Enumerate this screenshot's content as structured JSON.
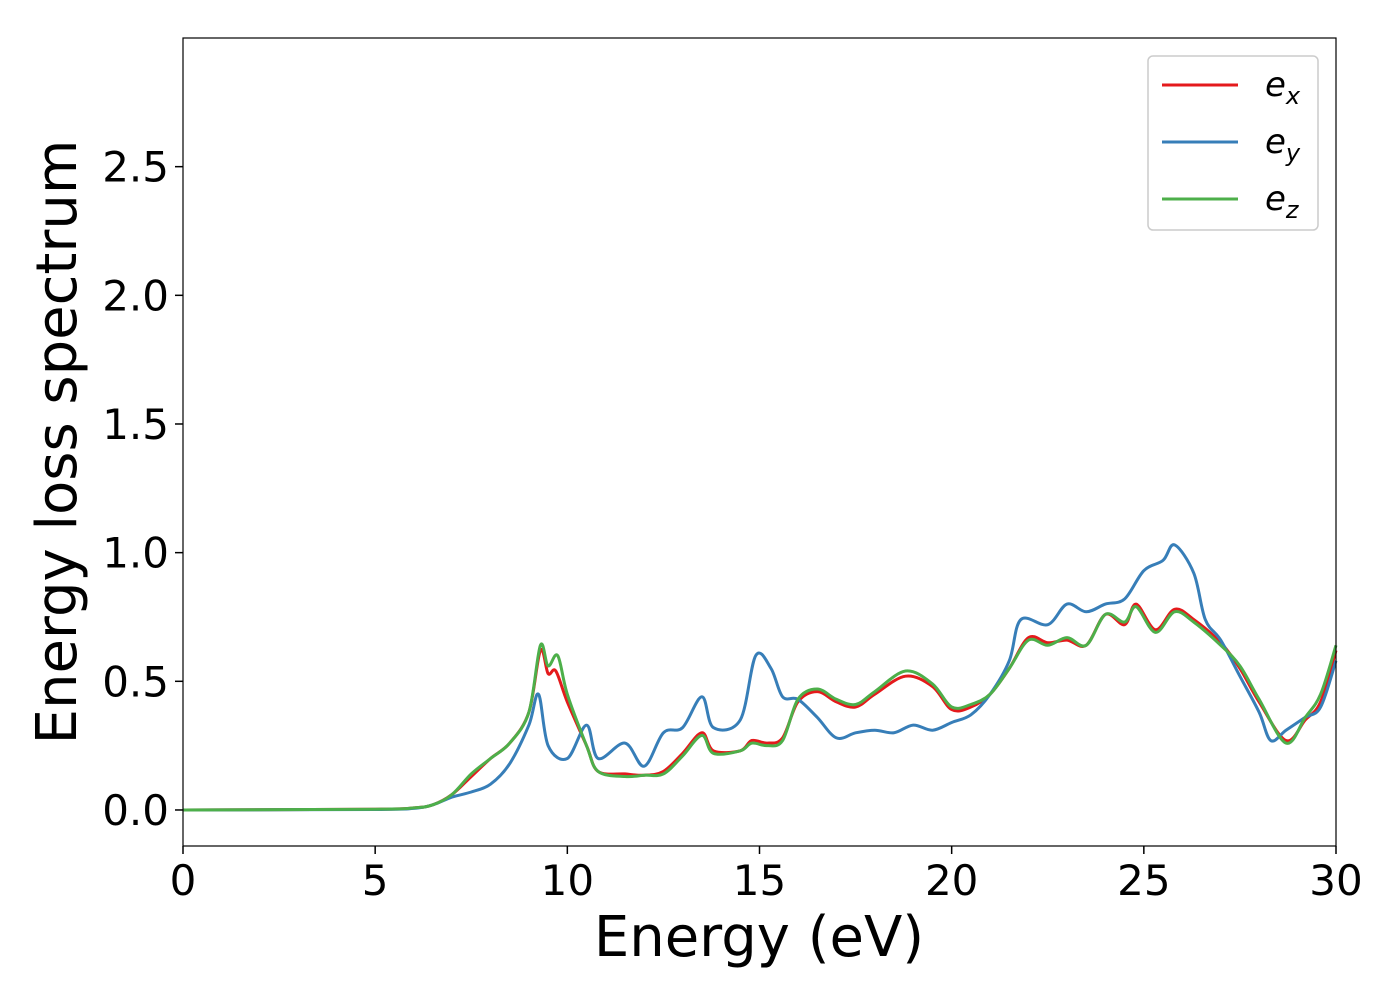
{
  "chart_data": {
    "type": "line",
    "xlabel": "Energy (eV)",
    "ylabel": "Energy loss spectrum",
    "xlim": [
      0,
      30
    ],
    "ylim": [
      -0.14,
      3.0
    ],
    "x_ticks": [
      0,
      5,
      10,
      15,
      20,
      25,
      30
    ],
    "x_tick_labels": [
      "0",
      "5",
      "10",
      "15",
      "20",
      "25",
      "30"
    ],
    "y_ticks": [
      0.0,
      0.5,
      1.0,
      1.5,
      2.0,
      2.5
    ],
    "y_tick_labels": [
      "0.0",
      "0.5",
      "1.0",
      "1.5",
      "2.0",
      "2.5"
    ],
    "grid": false,
    "legend_position": "top-right",
    "series": [
      {
        "name": "e",
        "subscript": "x",
        "color": "#e41a1c",
        "points": [
          [
            0,
            0.0
          ],
          [
            5,
            0.003
          ],
          [
            6,
            0.008
          ],
          [
            6.5,
            0.02
          ],
          [
            7,
            0.06
          ],
          [
            7.5,
            0.13
          ],
          [
            8,
            0.2
          ],
          [
            8.5,
            0.26
          ],
          [
            9,
            0.38
          ],
          [
            9.3,
            0.62
          ],
          [
            9.5,
            0.53
          ],
          [
            9.7,
            0.54
          ],
          [
            10,
            0.42
          ],
          [
            10.5,
            0.25
          ],
          [
            10.8,
            0.15
          ],
          [
            11.5,
            0.14
          ],
          [
            12,
            0.135
          ],
          [
            12.5,
            0.15
          ],
          [
            13,
            0.22
          ],
          [
            13.5,
            0.3
          ],
          [
            13.8,
            0.23
          ],
          [
            14.5,
            0.23
          ],
          [
            14.8,
            0.27
          ],
          [
            15.2,
            0.26
          ],
          [
            15.6,
            0.28
          ],
          [
            16,
            0.42
          ],
          [
            16.5,
            0.46
          ],
          [
            17,
            0.42
          ],
          [
            17.5,
            0.4
          ],
          [
            18,
            0.45
          ],
          [
            18.8,
            0.52
          ],
          [
            19.5,
            0.48
          ],
          [
            20,
            0.39
          ],
          [
            20.5,
            0.4
          ],
          [
            21,
            0.45
          ],
          [
            21.5,
            0.55
          ],
          [
            22,
            0.67
          ],
          [
            22.5,
            0.65
          ],
          [
            23,
            0.66
          ],
          [
            23.5,
            0.64
          ],
          [
            24,
            0.76
          ],
          [
            24.5,
            0.72
          ],
          [
            24.8,
            0.8
          ],
          [
            25.3,
            0.7
          ],
          [
            25.8,
            0.78
          ],
          [
            26.3,
            0.74
          ],
          [
            27,
            0.65
          ],
          [
            27.5,
            0.55
          ],
          [
            28,
            0.42
          ],
          [
            28.7,
            0.27
          ],
          [
            29.2,
            0.35
          ],
          [
            29.6,
            0.42
          ],
          [
            30,
            0.62
          ]
        ]
      },
      {
        "name": "e",
        "subscript": "y",
        "color": "#377eb8",
        "points": [
          [
            0,
            0.0
          ],
          [
            5,
            0.002
          ],
          [
            6,
            0.006
          ],
          [
            6.5,
            0.02
          ],
          [
            7,
            0.05
          ],
          [
            7.5,
            0.07
          ],
          [
            8,
            0.1
          ],
          [
            8.5,
            0.18
          ],
          [
            9,
            0.33
          ],
          [
            9.25,
            0.45
          ],
          [
            9.5,
            0.25
          ],
          [
            10,
            0.2
          ],
          [
            10.5,
            0.33
          ],
          [
            10.8,
            0.2
          ],
          [
            11.5,
            0.26
          ],
          [
            12,
            0.17
          ],
          [
            12.5,
            0.3
          ],
          [
            13,
            0.32
          ],
          [
            13.5,
            0.44
          ],
          [
            13.8,
            0.32
          ],
          [
            14.5,
            0.35
          ],
          [
            14.9,
            0.6
          ],
          [
            15.3,
            0.55
          ],
          [
            15.6,
            0.44
          ],
          [
            16,
            0.43
          ],
          [
            16.5,
            0.36
          ],
          [
            17,
            0.28
          ],
          [
            17.5,
            0.3
          ],
          [
            18,
            0.31
          ],
          [
            18.5,
            0.3
          ],
          [
            19,
            0.33
          ],
          [
            19.5,
            0.31
          ],
          [
            20,
            0.34
          ],
          [
            20.5,
            0.37
          ],
          [
            21,
            0.45
          ],
          [
            21.5,
            0.58
          ],
          [
            21.8,
            0.74
          ],
          [
            22.5,
            0.72
          ],
          [
            23,
            0.8
          ],
          [
            23.5,
            0.77
          ],
          [
            24,
            0.8
          ],
          [
            24.5,
            0.82
          ],
          [
            25,
            0.93
          ],
          [
            25.5,
            0.97
          ],
          [
            25.8,
            1.03
          ],
          [
            26.3,
            0.92
          ],
          [
            26.6,
            0.74
          ],
          [
            27,
            0.66
          ],
          [
            27.5,
            0.52
          ],
          [
            28,
            0.38
          ],
          [
            28.3,
            0.27
          ],
          [
            28.7,
            0.31
          ],
          [
            29.2,
            0.36
          ],
          [
            29.6,
            0.4
          ],
          [
            30,
            0.58
          ]
        ]
      },
      {
        "name": "e",
        "subscript": "z",
        "color": "#4daf4a",
        "points": [
          [
            0,
            0.0
          ],
          [
            5,
            0.003
          ],
          [
            6,
            0.008
          ],
          [
            6.5,
            0.02
          ],
          [
            7,
            0.06
          ],
          [
            7.5,
            0.14
          ],
          [
            8,
            0.2
          ],
          [
            8.5,
            0.26
          ],
          [
            9,
            0.38
          ],
          [
            9.3,
            0.64
          ],
          [
            9.5,
            0.56
          ],
          [
            9.75,
            0.6
          ],
          [
            10,
            0.45
          ],
          [
            10.5,
            0.25
          ],
          [
            10.8,
            0.15
          ],
          [
            11.5,
            0.13
          ],
          [
            12,
            0.135
          ],
          [
            12.5,
            0.14
          ],
          [
            13,
            0.21
          ],
          [
            13.5,
            0.29
          ],
          [
            13.8,
            0.22
          ],
          [
            14.5,
            0.23
          ],
          [
            14.8,
            0.26
          ],
          [
            15.2,
            0.25
          ],
          [
            15.6,
            0.27
          ],
          [
            16,
            0.43
          ],
          [
            16.5,
            0.47
          ],
          [
            17,
            0.43
          ],
          [
            17.5,
            0.41
          ],
          [
            18,
            0.46
          ],
          [
            18.8,
            0.54
          ],
          [
            19.5,
            0.49
          ],
          [
            20,
            0.4
          ],
          [
            20.5,
            0.41
          ],
          [
            21,
            0.45
          ],
          [
            21.5,
            0.55
          ],
          [
            22,
            0.66
          ],
          [
            22.5,
            0.64
          ],
          [
            23,
            0.67
          ],
          [
            23.5,
            0.64
          ],
          [
            24,
            0.76
          ],
          [
            24.5,
            0.73
          ],
          [
            24.8,
            0.79
          ],
          [
            25.3,
            0.69
          ],
          [
            25.8,
            0.77
          ],
          [
            26.3,
            0.73
          ],
          [
            27,
            0.64
          ],
          [
            27.5,
            0.56
          ],
          [
            28,
            0.43
          ],
          [
            28.7,
            0.26
          ],
          [
            29.2,
            0.36
          ],
          [
            29.6,
            0.45
          ],
          [
            30,
            0.64
          ]
        ]
      }
    ]
  }
}
